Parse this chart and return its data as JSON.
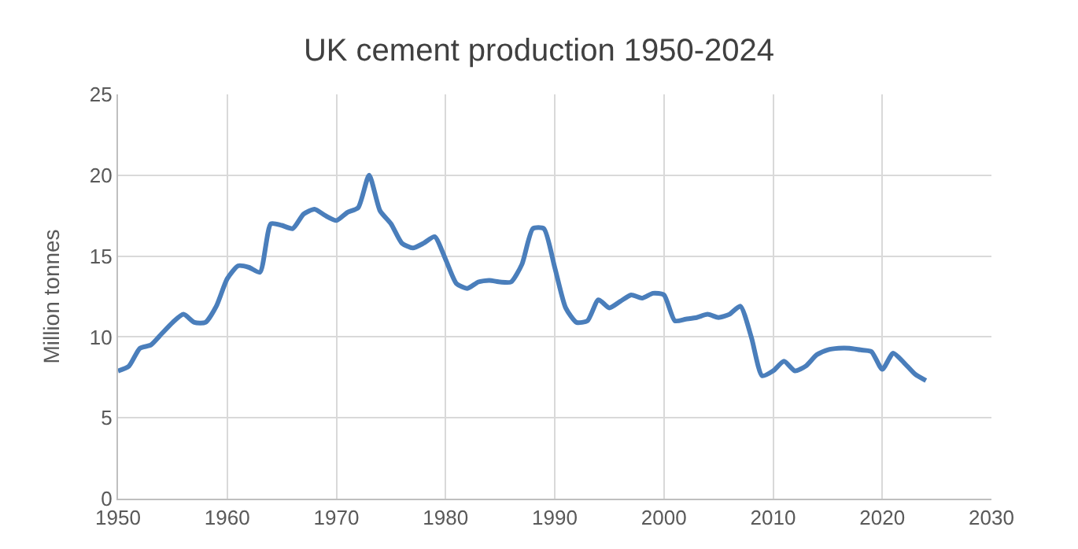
{
  "chart_data": {
    "type": "line",
    "title": "UK cement production 1950-2024",
    "ylabel": "Million tonnes",
    "x": [
      1950,
      1951,
      1952,
      1953,
      1954,
      1955,
      1956,
      1957,
      1958,
      1959,
      1960,
      1961,
      1962,
      1963,
      1964,
      1965,
      1966,
      1967,
      1968,
      1969,
      1970,
      1971,
      1972,
      1973,
      1974,
      1975,
      1976,
      1977,
      1978,
      1979,
      1980,
      1981,
      1982,
      1983,
      1984,
      1985,
      1986,
      1987,
      1988,
      1989,
      1990,
      1991,
      1992,
      1993,
      1994,
      1995,
      1996,
      1997,
      1998,
      1999,
      2000,
      2001,
      2002,
      2003,
      2004,
      2005,
      2006,
      2007,
      2008,
      2009,
      2010,
      2011,
      2012,
      2013,
      2014,
      2015,
      2016,
      2017,
      2018,
      2019,
      2020,
      2021,
      2022,
      2023,
      2024
    ],
    "series": [
      {
        "color": "#4a7ebb",
        "values": [
          7.9,
          8.2,
          9.3,
          9.5,
          10.2,
          10.9,
          11.4,
          10.9,
          10.9,
          11.9,
          13.6,
          14.4,
          14.3,
          14.0,
          17.0,
          16.9,
          16.7,
          17.6,
          17.9,
          17.5,
          17.2,
          17.7,
          18.0,
          20.0,
          17.8,
          17.0,
          15.8,
          15.5,
          15.8,
          16.2,
          14.8,
          13.3,
          13.0,
          13.4,
          13.5,
          13.4,
          13.4,
          14.5,
          16.7,
          16.7,
          14.3,
          11.8,
          10.9,
          11.0,
          12.3,
          11.8,
          12.2,
          12.6,
          12.4,
          12.7,
          12.6,
          11.0,
          11.1,
          11.2,
          11.4,
          11.2,
          11.4,
          11.9,
          10.0,
          7.6,
          7.9,
          8.5,
          7.9,
          8.2,
          8.9,
          9.2,
          9.3,
          9.3,
          9.2,
          9.1,
          8.0,
          9.0,
          8.4,
          7.7,
          7.3
        ]
      }
    ],
    "xlim": [
      1950,
      2030
    ],
    "xticks": [
      1950,
      1960,
      1970,
      1980,
      1990,
      2000,
      2010,
      2020,
      2030
    ],
    "ylim": [
      0,
      25
    ],
    "yticks": [
      0,
      5,
      10,
      15,
      20,
      25
    ],
    "grid": true,
    "legend": false,
    "marker": "none",
    "line_style": "solid"
  }
}
